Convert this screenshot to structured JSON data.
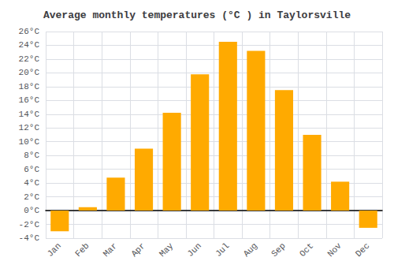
{
  "chart_data": {
    "type": "bar",
    "title": "Average monthly temperatures (°C ) in Taylorsville",
    "categories": [
      "Jan",
      "Feb",
      "Mar",
      "Apr",
      "May",
      "Jun",
      "Jul",
      "Aug",
      "Sep",
      "Oct",
      "Nov",
      "Dec"
    ],
    "values": [
      -3.0,
      0.5,
      4.8,
      9.0,
      14.2,
      19.8,
      24.5,
      23.2,
      17.5,
      11.0,
      4.2,
      -2.5
    ],
    "color": "#FFAA00",
    "ylim": [
      -4,
      26
    ],
    "yticks": [
      {
        "value": -4,
        "label": "-4°C"
      },
      {
        "value": -2,
        "label": "-2°C"
      },
      {
        "value": 0,
        "label": "0°C"
      },
      {
        "value": 2,
        "label": "2°C"
      },
      {
        "value": 4,
        "label": "4°C"
      },
      {
        "value": 6,
        "label": "6°C"
      },
      {
        "value": 8,
        "label": "8°C"
      },
      {
        "value": 10,
        "label": "10°C"
      },
      {
        "value": 12,
        "label": "12°C"
      },
      {
        "value": 14,
        "label": "14°C"
      },
      {
        "value": 16,
        "label": "16°C"
      },
      {
        "value": 18,
        "label": "18°C"
      },
      {
        "value": 20,
        "label": "20°C"
      },
      {
        "value": 22,
        "label": "22°C"
      },
      {
        "value": 24,
        "label": "24°C"
      },
      {
        "value": 26,
        "label": "26°C"
      }
    ],
    "grid": true
  }
}
